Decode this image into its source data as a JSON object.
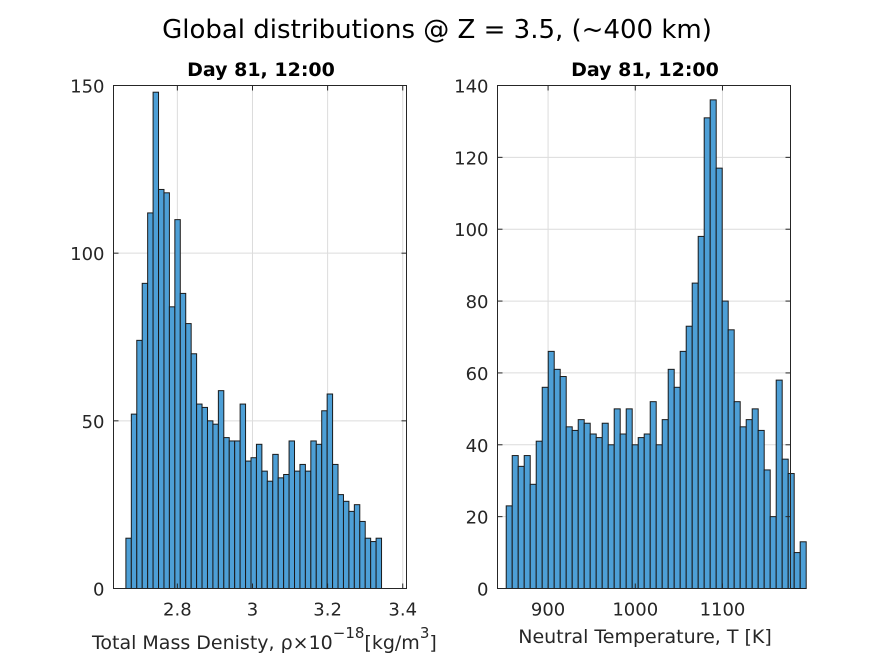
{
  "figure": {
    "suptitle": "Global distributions @ Z = 3.5, (~400 km)"
  },
  "chart_data": [
    {
      "type": "histogram",
      "title": "Day 81, 12:00",
      "xlabel": "Total Mass Denisty, ρ×10",
      "xlabel_exponent": "−18",
      "xlabel_units": "[kg/m",
      "xlabel_units_exponent": "3",
      "xlabel_units_close": "]",
      "xlim": [
        2.63,
        3.41
      ],
      "ylim": [
        0,
        150
      ],
      "xticks": [
        2.8,
        3.0,
        3.2,
        3.4
      ],
      "xtick_labels": [
        "2.8",
        "3",
        "3.2",
        "3.4"
      ],
      "yticks": [
        0,
        50,
        100,
        150
      ],
      "ytick_labels": [
        "0",
        "50",
        "100",
        "150"
      ],
      "grid": true,
      "bin_start": 2.663,
      "bin_width": 0.01448,
      "counts": [
        15,
        52,
        74,
        91,
        112,
        148,
        119,
        118,
        84,
        110,
        88,
        79,
        70,
        55,
        54,
        50,
        49,
        59,
        45,
        44,
        44,
        55,
        38,
        39,
        43,
        35,
        32,
        40,
        33,
        34,
        44,
        35,
        37,
        35,
        44,
        43,
        53,
        58,
        37,
        28,
        26,
        23,
        25,
        20,
        15,
        14,
        15
      ],
      "bar_color": "#4d9fd6"
    },
    {
      "type": "histogram",
      "title": "Day 81, 12:00",
      "xlabel": "Neutral Temperature, T [K]",
      "xlim": [
        842,
        1178
      ],
      "ylim": [
        0,
        140
      ],
      "xticks": [
        900,
        1000,
        1100
      ],
      "xtick_labels": [
        "900",
        "1000",
        "1100"
      ],
      "yticks": [
        0,
        20,
        40,
        60,
        80,
        100,
        120,
        140
      ],
      "ytick_labels": [
        "0",
        "20",
        "40",
        "60",
        "80",
        "100",
        "120",
        "140"
      ],
      "grid": true,
      "bin_start": 852.0,
      "bin_width": 6.88,
      "counts": [
        23,
        37,
        34,
        37,
        29,
        41,
        56,
        66,
        61,
        59,
        45,
        44,
        47,
        46,
        43,
        42,
        46,
        40,
        50,
        43,
        50,
        40,
        42,
        43,
        52,
        40,
        47,
        61,
        56,
        66,
        73,
        85,
        98,
        131,
        136,
        117,
        80,
        72,
        52,
        45,
        47,
        50,
        44,
        33,
        20,
        58,
        36,
        32,
        10,
        13
      ],
      "bar_color": "#4d9fd6"
    }
  ]
}
